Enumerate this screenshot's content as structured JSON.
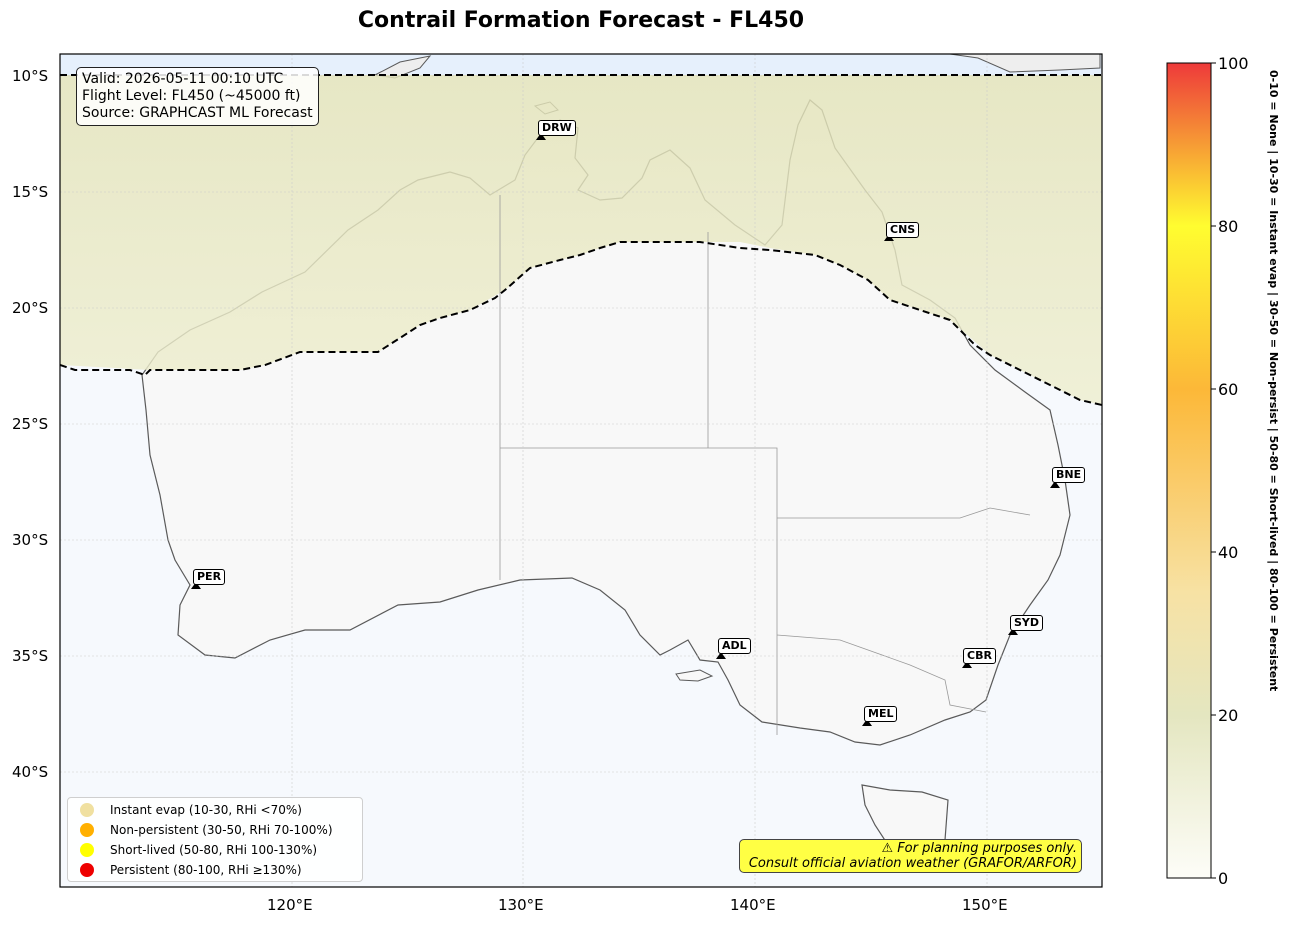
{
  "title": "Contrail Formation Forecast - FL450",
  "info": {
    "valid": "Valid: 2026-05-11 00:10 UTC",
    "flight_level": "Flight Level: FL450 (~45000 ft)",
    "source": "Source: GRAPHCAST ML Forecast"
  },
  "lat_ticks": [
    "10°S",
    "15°S",
    "20°S",
    "25°S",
    "30°S",
    "35°S",
    "40°S"
  ],
  "lon_ticks": [
    "120°E",
    "130°E",
    "140°E",
    "150°E"
  ],
  "airports": [
    {
      "code": "DRW"
    },
    {
      "code": "CNS"
    },
    {
      "code": "BNE"
    },
    {
      "code": "PER"
    },
    {
      "code": "ADL"
    },
    {
      "code": "SYD"
    },
    {
      "code": "CBR"
    },
    {
      "code": "MEL"
    }
  ],
  "legend": [
    {
      "label": "Instant evap (10-30, RHi <70%)",
      "color": "#f0e0a0"
    },
    {
      "label": "Non-persistent (30-50, RHi 70-100%)",
      "color": "#ffb000"
    },
    {
      "label": "Short-lived (50-80, RHi 100-130%)",
      "color": "#ffff00"
    },
    {
      "label": "Persistent (80-100, RHi ≥130%)",
      "color": "#ee0000"
    }
  ],
  "warning": {
    "line1": "⚠ For planning purposes only.",
    "line2": "Consult official aviation weather (GRAFOR/ARFOR)"
  },
  "colorbar": {
    "ticks": [
      "0",
      "20",
      "40",
      "60",
      "80",
      "100"
    ],
    "side_label": "0-10 = None  |  10-30 = Instant evap  |  30-50 = Non-persist  |  50-80 = Short-lived  |  80-100 = Persistent"
  }
}
